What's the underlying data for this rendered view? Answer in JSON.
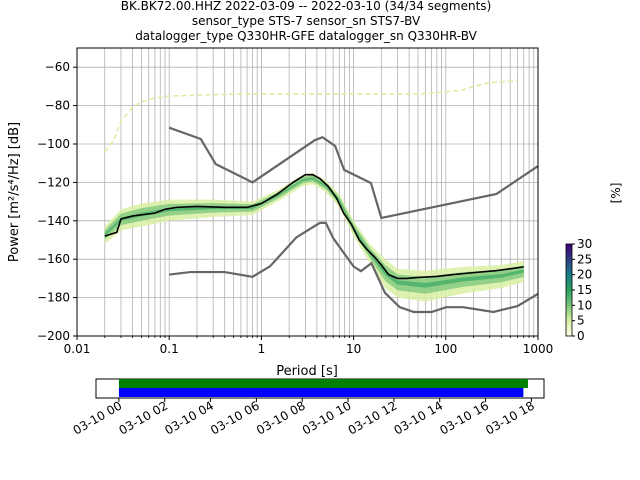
{
  "title": {
    "line1": "BK.BK72.00.HHZ   2022-03-09 -- 2022-03-10  (34/34 segments)",
    "line2": "sensor_type STS-7 sensor_sn STS7-BV",
    "line3": "datalogger_type Q330HR-GFE datalogger_sn Q330HR-BV"
  },
  "chart_data": [
    {
      "type": "heatmap",
      "xlabel": "Period [s]",
      "ylabel": "Power [m²/s⁴/Hz] [dB]",
      "x_scale": "log",
      "xlim": [
        0.01,
        1000
      ],
      "ylim": [
        -200,
        -50
      ],
      "x_ticks": [
        {
          "value": 0.01,
          "label": "0.01"
        },
        {
          "value": 0.1,
          "label": "0.1"
        },
        {
          "value": 1,
          "label": "1"
        },
        {
          "value": 10,
          "label": "10"
        },
        {
          "value": 100,
          "label": "100"
        },
        {
          "value": 1000,
          "label": "1000"
        }
      ],
      "y_ticks": [
        -60,
        -80,
        -100,
        -120,
        -140,
        -160,
        -180,
        -200
      ],
      "grid": true,
      "colorbar": {
        "label": "[%]",
        "min": 0,
        "max": 30,
        "ticks": [
          0,
          5,
          10,
          15,
          20,
          25,
          30
        ],
        "colors": [
          "#ffffe5",
          "#d9f0a3",
          "#78c679",
          "#2ca25f",
          "#1b7e8a",
          "#2c3e80",
          "#3f007d"
        ]
      },
      "noise_model_high": {
        "color": "#666666",
        "points": [
          [
            0.1,
            -91.5
          ],
          [
            0.22,
            -97.4
          ],
          [
            0.32,
            -110.5
          ],
          [
            0.8,
            -120
          ],
          [
            3.8,
            -98
          ],
          [
            4.6,
            -96.5
          ],
          [
            6.3,
            -101
          ],
          [
            7.9,
            -113.5
          ],
          [
            15.4,
            -120.3
          ],
          [
            20,
            -138.5
          ],
          [
            354.8,
            -126
          ],
          [
            1000,
            -111.5
          ]
        ]
      },
      "noise_model_low": {
        "color": "#666666",
        "points": [
          [
            0.1,
            -168
          ],
          [
            0.17,
            -166.7
          ],
          [
            0.4,
            -166.7
          ],
          [
            0.8,
            -169.2
          ],
          [
            1.24,
            -163.7
          ],
          [
            2.4,
            -148.6
          ],
          [
            4.3,
            -141.1
          ],
          [
            5,
            -141.1
          ],
          [
            6,
            -149
          ],
          [
            10,
            -163.8
          ],
          [
            12,
            -166.2
          ],
          [
            15.6,
            -162.1
          ],
          [
            21.9,
            -177.5
          ],
          [
            31.6,
            -185
          ],
          [
            45,
            -187.5
          ],
          [
            70,
            -187.5
          ],
          [
            101,
            -185
          ],
          [
            154,
            -185
          ],
          [
            328,
            -187.5
          ],
          [
            600,
            -184.4
          ],
          [
            1000,
            -178
          ]
        ]
      },
      "mode_line": {
        "color": "#000000",
        "points": [
          [
            0.02,
            -148
          ],
          [
            0.027,
            -146
          ],
          [
            0.03,
            -139
          ],
          [
            0.04,
            -137.5
          ],
          [
            0.07,
            -136
          ],
          [
            0.09,
            -134
          ],
          [
            0.12,
            -133
          ],
          [
            0.2,
            -132.5
          ],
          [
            0.4,
            -133
          ],
          [
            0.7,
            -133
          ],
          [
            1.0,
            -131
          ],
          [
            1.5,
            -126
          ],
          [
            2.2,
            -120
          ],
          [
            3.0,
            -116
          ],
          [
            3.6,
            -116
          ],
          [
            4.3,
            -118
          ],
          [
            5.3,
            -122
          ],
          [
            6.5,
            -128
          ],
          [
            7.8,
            -136
          ],
          [
            9.5,
            -142
          ],
          [
            11.5,
            -150
          ],
          [
            14,
            -155
          ],
          [
            17,
            -159
          ],
          [
            20,
            -163
          ],
          [
            24,
            -168
          ],
          [
            30,
            -170
          ],
          [
            38,
            -170
          ],
          [
            50,
            -169.5
          ],
          [
            80,
            -169
          ],
          [
            120,
            -168
          ],
          [
            200,
            -167
          ],
          [
            350,
            -166
          ],
          [
            500,
            -165
          ],
          [
            700,
            -164
          ]
        ]
      },
      "spread": {
        "color": "#2ca25f",
        "band_upper": [
          [
            0.02,
            -143
          ],
          [
            0.03,
            -134
          ],
          [
            0.05,
            -131
          ],
          [
            0.1,
            -129
          ],
          [
            0.3,
            -129
          ],
          [
            0.8,
            -130
          ],
          [
            1.5,
            -124
          ],
          [
            2.8,
            -116
          ],
          [
            3.6,
            -115
          ],
          [
            5,
            -119
          ],
          [
            7,
            -126
          ],
          [
            10,
            -140
          ],
          [
            15,
            -152
          ],
          [
            22,
            -160
          ],
          [
            30,
            -165
          ],
          [
            60,
            -166
          ],
          [
            150,
            -164
          ],
          [
            400,
            -163
          ],
          [
            700,
            -161
          ]
        ],
        "band_lower": [
          [
            0.02,
            -152
          ],
          [
            0.03,
            -145
          ],
          [
            0.05,
            -143
          ],
          [
            0.1,
            -140
          ],
          [
            0.3,
            -138
          ],
          [
            0.8,
            -137
          ],
          [
            1.5,
            -130
          ],
          [
            2.8,
            -122
          ],
          [
            3.6,
            -121
          ],
          [
            5,
            -125
          ],
          [
            7,
            -133
          ],
          [
            10,
            -148
          ],
          [
            15,
            -162
          ],
          [
            22,
            -175
          ],
          [
            30,
            -180
          ],
          [
            60,
            -182
          ],
          [
            150,
            -178
          ],
          [
            400,
            -175
          ],
          [
            700,
            -172
          ]
        ]
      },
      "outliers": {
        "color": "#d9f0a3",
        "points": [
          [
            0.02,
            -104
          ],
          [
            0.025,
            -98
          ],
          [
            0.03,
            -88
          ],
          [
            0.04,
            -81
          ],
          [
            0.05,
            -78
          ],
          [
            0.07,
            -76
          ],
          [
            0.1,
            -75
          ],
          [
            0.5,
            -74
          ],
          [
            2,
            -74
          ],
          [
            10,
            -74
          ],
          [
            50,
            -74
          ],
          [
            90,
            -73
          ],
          [
            150,
            -72
          ],
          [
            200,
            -70
          ],
          [
            300,
            -68
          ],
          [
            600,
            -67
          ]
        ]
      }
    },
    {
      "type": "bar",
      "title": "",
      "x_ticks": [
        "03-10 00",
        "03-10 02",
        "03-10 04",
        "03-10 06",
        "03-10 08",
        "03-10 10",
        "03-10 12",
        "03-10 14",
        "03-10 16",
        "03-10 18"
      ],
      "xlim_hours": [
        -1.0,
        18.55
      ],
      "series": [
        {
          "color": "#008000",
          "start_hours": 0.0,
          "end_hours": 17.85
        },
        {
          "color": "#0000ff",
          "start_hours": 0.0,
          "end_hours": 17.65
        }
      ]
    }
  ]
}
